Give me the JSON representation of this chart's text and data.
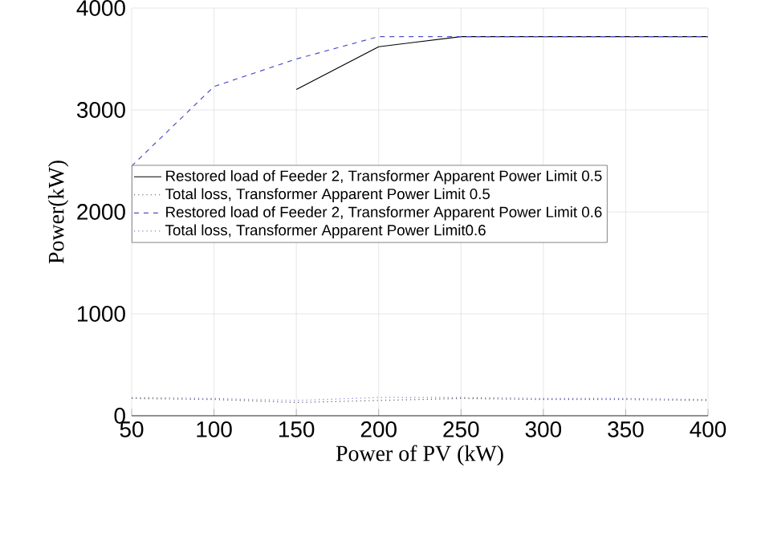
{
  "chart_data": {
    "type": "line",
    "xlabel": "Power of PV (kW)",
    "ylabel": "Power(kW)",
    "x": [
      50,
      100,
      150,
      200,
      250,
      300,
      350,
      400
    ],
    "series": [
      {
        "name": "Restored load of Feeder 2, Transformer Apparent Power Limit 0.5",
        "color": "#000000",
        "line_style": "solid",
        "values": [
          null,
          null,
          3200,
          3620,
          3720,
          3720,
          3720,
          3720
        ]
      },
      {
        "name": "Total loss, Transformer Apparent Power Limit 0.5",
        "color": "#555555",
        "line_style": "dotted",
        "values": [
          170,
          160,
          130,
          150,
          170,
          160,
          160,
          150
        ]
      },
      {
        "name": "Restored load of Feeder 2, Transformer Apparent Power Limit 0.6",
        "color": "#5050c8",
        "line_style": "dashed",
        "values": [
          2450,
          3230,
          3500,
          3720,
          3720,
          3720,
          3720,
          3720
        ]
      },
      {
        "name": "Total loss, Transformer Apparent Power Limit0.6",
        "color": "#8080d0",
        "line_style": "dotted",
        "values": [
          180,
          170,
          150,
          180,
          180,
          170,
          170,
          160
        ]
      }
    ],
    "xlim": [
      50,
      400
    ],
    "ylim": [
      0,
      4000
    ],
    "xticks": [
      50,
      100,
      150,
      200,
      250,
      300,
      350,
      400
    ],
    "yticks": [
      0,
      1000,
      2000,
      3000,
      4000
    ],
    "grid": true,
    "legend": "left",
    "marker": "none"
  }
}
